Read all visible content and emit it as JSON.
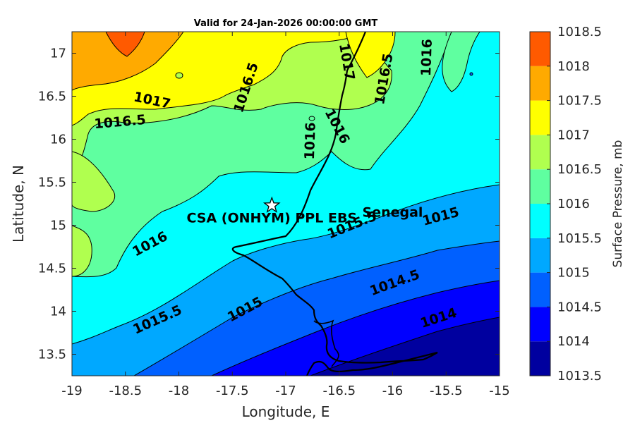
{
  "title": "Valid for 24-Jan-2026 00:00:00 GMT",
  "x_axis": {
    "label": "Longitude, E",
    "range": [
      -19,
      -15
    ],
    "ticks": [
      "-19",
      "-18.5",
      "-18",
      "-17.5",
      "-17",
      "-16.5",
      "-16",
      "-15.5",
      "-15"
    ]
  },
  "y_axis": {
    "label": "Latitude, N",
    "range": [
      13.25,
      17.25
    ],
    "ticks": [
      "13.5",
      "14",
      "14.5",
      "15",
      "15.5",
      "16",
      "16.5",
      "17"
    ]
  },
  "colorbar": {
    "label": "Surface Pressure, mb",
    "levels": [
      "1013.5",
      "1014",
      "1014.5",
      "1015",
      "1015.5",
      "1016",
      "1016.5",
      "1017",
      "1017.5",
      "1018",
      "1018.5"
    ],
    "colors": [
      "#00009f",
      "#0000ff",
      "#0060ff",
      "#00a8ff",
      "#00ffff",
      "#5fffa0",
      "#b0ff4f",
      "#ffff00",
      "#ffaa00",
      "#ff5a00",
      "#ff0000"
    ]
  },
  "contour_labels": [
    {
      "text": "1017",
      "lon": -18.25,
      "lat": 16.45,
      "angle": 12
    },
    {
      "text": "1016.5",
      "lon": -18.55,
      "lat": 16.2,
      "angle": -5
    },
    {
      "text": "1016.5",
      "lon": -17.37,
      "lat": 16.6,
      "angle": -72
    },
    {
      "text": "1017",
      "lon": -16.43,
      "lat": 16.9,
      "angle": 80
    },
    {
      "text": "1016.5",
      "lon": -16.08,
      "lat": 16.7,
      "angle": -80
    },
    {
      "text": "1016",
      "lon": -15.68,
      "lat": 16.95,
      "angle": -88
    },
    {
      "text": "1016",
      "lon": -16.52,
      "lat": 16.15,
      "angle": 62
    },
    {
      "text": "1016",
      "lon": -16.77,
      "lat": 15.98,
      "angle": -88
    },
    {
      "text": "1016",
      "lon": -18.27,
      "lat": 14.78,
      "angle": -28
    },
    {
      "text": "1015.5",
      "lon": -16.38,
      "lat": 15.0,
      "angle": -22
    },
    {
      "text": "1015",
      "lon": -15.55,
      "lat": 15.1,
      "angle": -15
    },
    {
      "text": "1015.5",
      "lon": -18.2,
      "lat": 13.9,
      "angle": -24
    },
    {
      "text": "1015",
      "lon": -17.38,
      "lat": 14.02,
      "angle": -28
    },
    {
      "text": "1014.5",
      "lon": -15.98,
      "lat": 14.33,
      "angle": -20
    },
    {
      "text": "1014",
      "lon": -15.57,
      "lat": 13.92,
      "angle": -18
    }
  ],
  "places": [
    {
      "name": "CSA (ONHYM) PPL EBS",
      "lon": -17.13,
      "lat": 15.23,
      "marker": "star"
    },
    {
      "name": "Senegal",
      "lon": -16.0,
      "lat": 15.1
    }
  ]
}
